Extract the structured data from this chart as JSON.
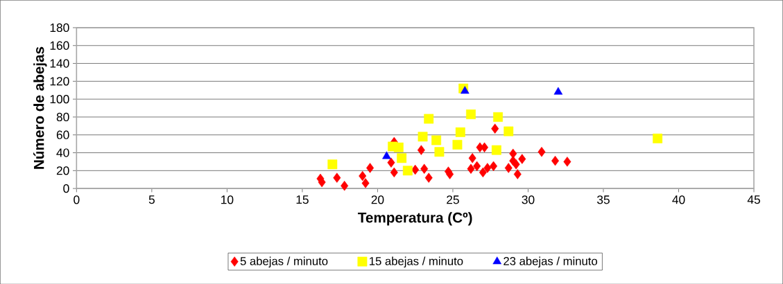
{
  "chart_data": {
    "type": "scatter",
    "xlabel": "Temperatura (Cº)",
    "ylabel": "Número de abejas",
    "xlim": [
      0,
      45
    ],
    "xticks": [
      0,
      5,
      10,
      15,
      20,
      25,
      30,
      35,
      40,
      45
    ],
    "ylim": [
      0,
      180
    ],
    "yticks": [
      0,
      20,
      40,
      60,
      80,
      100,
      120,
      140,
      160,
      180
    ],
    "grid": "y",
    "legend": "bottom",
    "series": [
      {
        "name": "5 abejas / minuto",
        "color": "#ff0000",
        "marker": "diamond",
        "x": [
          16.2,
          16.3,
          17.3,
          17.8,
          19.0,
          19.2,
          19.5,
          21.1,
          20.9,
          21.1,
          22.5,
          22.9,
          23.1,
          23.4,
          24.7,
          24.8,
          26.3,
          26.2,
          26.6,
          26.8,
          27.1,
          27.0,
          27.3,
          27.7,
          27.8,
          28.7,
          29.0,
          29.0,
          29.2,
          29.6,
          29.3,
          30.9,
          31.8,
          32.6
        ],
        "values": [
          11,
          7,
          12,
          3,
          14,
          6,
          23,
          52,
          29,
          18,
          21,
          43,
          22,
          12,
          19,
          16,
          34,
          22,
          25,
          46,
          46,
          18,
          23,
          25,
          67,
          23,
          39,
          31,
          27,
          33,
          16,
          41,
          31,
          30
        ]
      },
      {
        "name": "15 abejas / minuto",
        "color": "#ffff00",
        "marker": "square",
        "x": [
          17.0,
          21.0,
          21.4,
          21.6,
          22.0,
          23.0,
          23.4,
          23.9,
          24.1,
          25.3,
          25.5,
          25.7,
          26.2,
          28.0,
          28.7,
          27.9,
          38.6
        ],
        "values": [
          27,
          47,
          46,
          34,
          20,
          58,
          78,
          54,
          41,
          49,
          63,
          112,
          83,
          80,
          64,
          43,
          56
        ]
      },
      {
        "name": "23 abejas / minuto",
        "color": "#0000ff",
        "marker": "triangle",
        "x": [
          20.6,
          25.8,
          32.0
        ],
        "values": [
          36,
          109,
          108
        ]
      }
    ]
  }
}
